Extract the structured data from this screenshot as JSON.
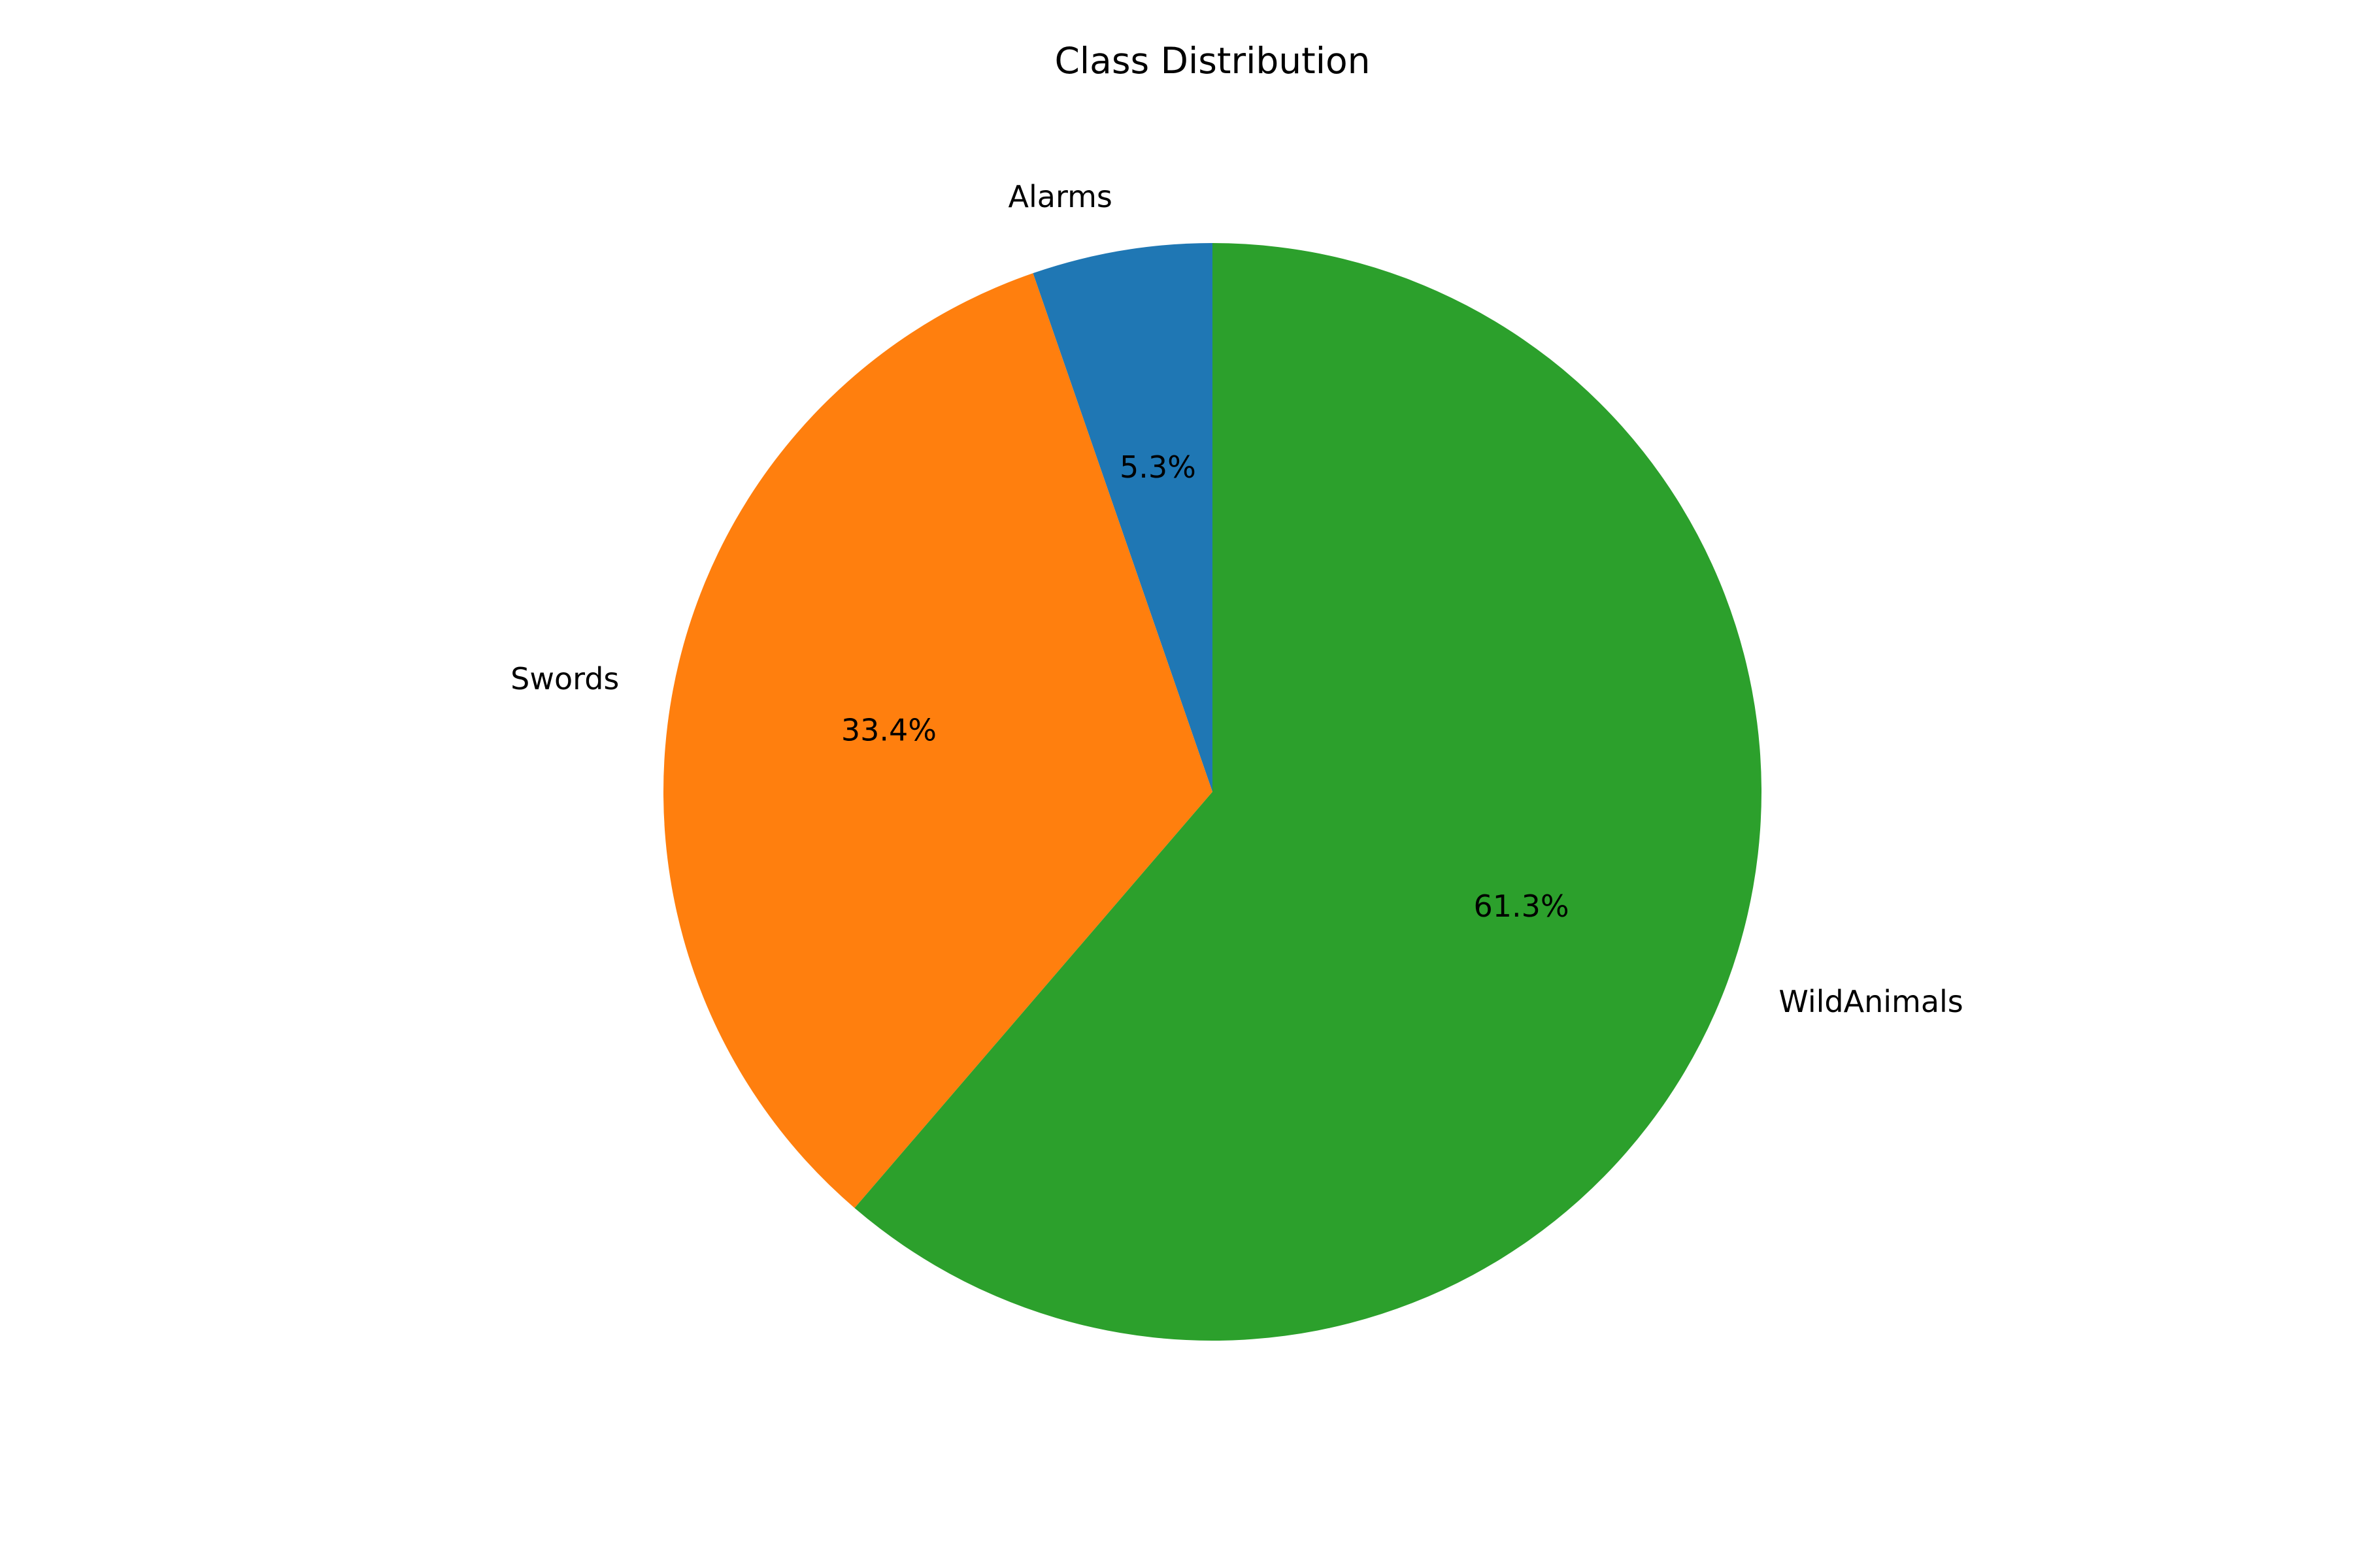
{
  "chart_data": {
    "type": "pie",
    "title": "Class Distribution",
    "start_angle_deg": 90,
    "direction": "counterclockwise",
    "slices": [
      {
        "label": "Alarms",
        "value": 5.3,
        "percent_label": "5.3%",
        "color": "#1f77b4"
      },
      {
        "label": "Swords",
        "value": 33.4,
        "percent_label": "33.4%",
        "color": "#ff7f0e"
      },
      {
        "label": "WildAnimals",
        "value": 61.3,
        "percent_label": "61.3%",
        "color": "#2ca02c"
      }
    ]
  }
}
